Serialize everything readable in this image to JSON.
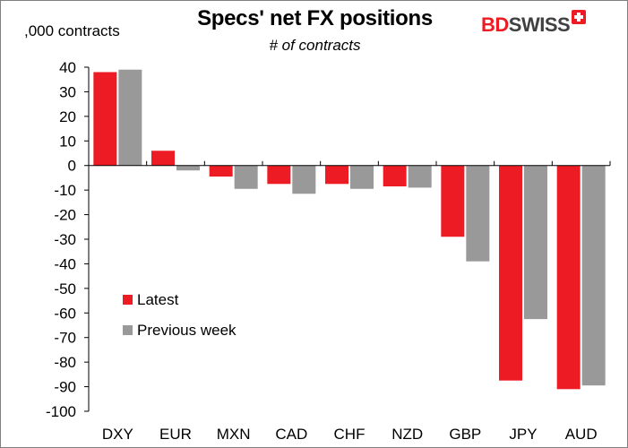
{
  "header": {
    "title": "Specs' net FX positions",
    "subtitle": "# of contracts",
    "unit_label": ",000 contracts"
  },
  "logo": {
    "part1": "BD",
    "part2": "SWISS",
    "brand_color": "#ed1c24"
  },
  "chart_data": {
    "type": "bar",
    "title": "Specs' net FX positions",
    "subtitle": "# of contracts",
    "ylabel": ",000 contracts",
    "xlabel": "",
    "categories": [
      "DXY",
      "EUR",
      "MXN",
      "CAD",
      "CHF",
      "NZD",
      "GBP",
      "JPY",
      "AUD"
    ],
    "series": [
      {
        "name": "Latest",
        "color": "#ed1c24",
        "values": [
          38,
          6,
          -4.5,
          -7.5,
          -7.5,
          -8.5,
          -29,
          -87.5,
          -91
        ]
      },
      {
        "name": "Previous week",
        "color": "#999999",
        "values": [
          39,
          -2,
          -9.5,
          -11.5,
          -9.5,
          -9,
          -39,
          -62.5,
          -89.5
        ]
      }
    ],
    "ylim": [
      -100,
      40
    ],
    "yticks": [
      40,
      30,
      20,
      10,
      0,
      -10,
      -20,
      -30,
      -40,
      -50,
      -60,
      -70,
      -80,
      -90,
      -100
    ],
    "grid": false,
    "legend_position": "left, lower-middle"
  }
}
